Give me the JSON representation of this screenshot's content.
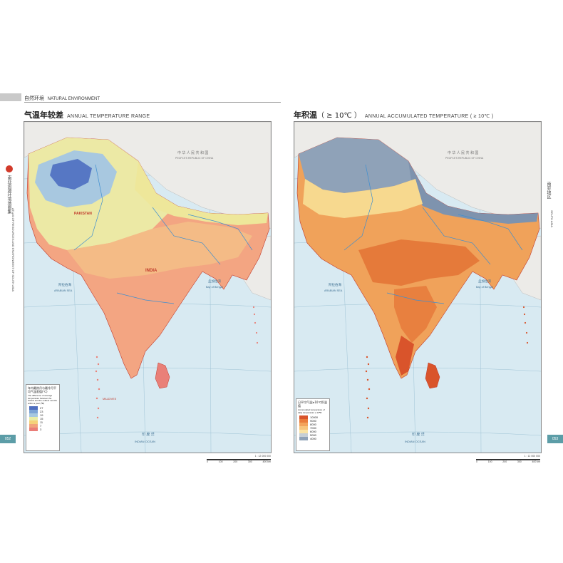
{
  "header": {
    "section_zh": "自然环境",
    "section_en": "NATURAL ENVIRONMENT"
  },
  "left_map": {
    "title_zh": "气温年较差",
    "title_en": "ANNUAL TEMPERATURE RANGE",
    "country_labels": {
      "pakistan": "PAKISTAN",
      "india": "INDIA",
      "china": "中 华 人 民 共 和 国",
      "china_en": "PEOPLE'S REPUBLIC OF CHINA"
    },
    "sea_labels": {
      "arabian_zh": "阿拉伯海",
      "arabian_en": "ARABIAN SEA",
      "bengal_zh": "孟加拉湾",
      "bengal_en": "Bay of Bengal",
      "indian_ocean_zh": "印 度 洋",
      "indian_ocean_en": "INDIAN   OCEAN",
      "maldives": "MALDIVES"
    },
    "legend": {
      "title_zh": "年内最热月与最冷月平均气温差值(℃)",
      "title_en": "The difference of average temperature between the hottest and the coldest months within a year (℃)",
      "values": [
        "27",
        "23",
        "19",
        "15",
        "11",
        "7",
        "3"
      ],
      "colors": [
        "#4f6fbf",
        "#7da4d6",
        "#a6c8e0",
        "#e9eda6",
        "#f5d27a",
        "#f2a37c",
        "#ea7d78"
      ]
    },
    "scale": {
      "ratio": "1 : 12 000 000",
      "ticks": [
        "0",
        "100",
        "200",
        "300",
        "400 km"
      ]
    },
    "page_number": "052"
  },
  "right_map": {
    "title_zh": "年积温",
    "title_sym": "（ ≥ 10℃ ）",
    "title_en": "ANNUAL ACCUMULATED TEMPERATURE ( ≥ 10℃ )",
    "country_labels": {
      "china": "中 华 人 民 共 和 国",
      "china_en": "PEOPLE'S REPUBLIC OF CHINA"
    },
    "sea_labels": {
      "arabian_zh": "阿拉伯海",
      "arabian_en": "ARABIAN SEA",
      "bengal_zh": "孟加拉湾",
      "bengal_en": "Bay of Bengal",
      "indian_ocean_zh": "印 度 洋",
      "indian_ocean_en": "INDIAN   OCEAN"
    },
    "legend": {
      "title_zh": "日平均气温≥10℃积温值",
      "title_en": "Accumulated temperature of daily temperature ≥ 10℃",
      "values": [
        "10000",
        "9000",
        "8000",
        "7000",
        "6000",
        "5000",
        "4000"
      ],
      "colors": [
        "#d9542b",
        "#ea7c3a",
        "#f3a35a",
        "#f7c47a",
        "#fae3a4",
        "#c6cfd6",
        "#8fa2b8"
      ]
    },
    "scale": {
      "ratio": "1 : 12 000 000",
      "ticks": [
        "0",
        "100",
        "200",
        "300",
        "400 km"
      ]
    },
    "page_number": "053"
  },
  "spine": {
    "atlas_zh": "南亚资源环境地图集",
    "atlas_en": "ATLAS OF RESOURCES AND ENVIRONMENT OF SOUTH ASIA",
    "region_zh": "南亚地区",
    "region_en": "SOUTH ASIA"
  }
}
